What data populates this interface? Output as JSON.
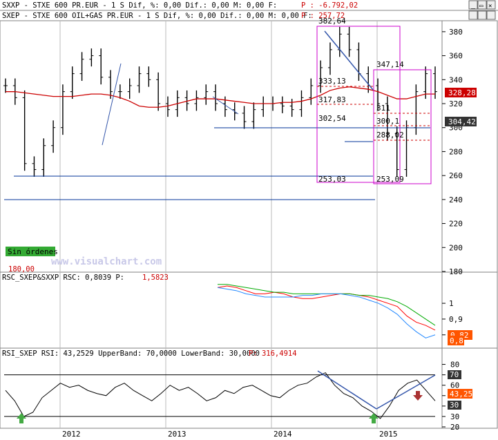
{
  "windows": [
    {
      "name": "SXXP",
      "text": "SXXP - STXE 600 PR.EUR -  1 S Dif, %: 0,00 Dif.: 0,00 M: 0,00 F: ",
      "p_label": "P : -6.792,02"
    },
    {
      "name": "SXEP",
      "text": "SXEP - STXE 600 OIL+GAS PR.EUR -  1 S Dif, %: 0,00 Dif.: 0,00 M: 0,00 F: ",
      "p_label": "P : 257,72"
    }
  ],
  "toolbar": {
    "minimize": "_",
    "restore": "▭",
    "close": "✕"
  },
  "price_panel": {
    "badge_ma": "328,28",
    "badge_price": "304,42",
    "sin_ordenes": "Sin órdenes",
    "watermark": "www.visualchart.com",
    "level_180": "180,00",
    "annotations": [
      {
        "label": "382,64",
        "value": 382.64
      },
      {
        "label": "347,14",
        "value": 347.14
      },
      {
        "label": "333,13",
        "value": 333.13
      },
      {
        "label": "317,83",
        "value": 317.83
      },
      {
        "label": "302,54",
        "value": 302.54
      },
      {
        "label": "311",
        "value": 311
      },
      {
        "label": "300,1",
        "value": 300.1
      },
      {
        "label": "288,02",
        "value": 288.02
      },
      {
        "label": "253,03",
        "value": 253.03
      },
      {
        "label": "253,09",
        "value": 253.09
      }
    ]
  },
  "rsc_panel": {
    "header": "RSC_SXEP&SXXP RSC: 0,8039 P: ",
    "p_label": "1,5823",
    "badge_a": "0,82",
    "badge_b": "0,8"
  },
  "rsi_panel": {
    "header": "RSI_SXEP RSI: 43,2529 UpperBand: 70,0000 LowerBand: 30,0000 ",
    "p_label": "P: 316,4914",
    "badge_70": "70",
    "badge_rsi": "43,25",
    "badge_30": "30"
  },
  "x_axis_labels": [
    "2012",
    "2013",
    "2014",
    "2015"
  ],
  "colors": {
    "price": "#000000",
    "ma": "#cc0000",
    "support": "#003399",
    "magenta": "#cc00cc",
    "green_arrow": "#44aa44",
    "red_arrow": "#aa3333",
    "rsc_red": "#ff0000",
    "rsc_green": "#00aa00",
    "rsc_blue": "#2288ff",
    "badge_red": "#cc0000",
    "badge_orange": "#ff5500",
    "badge_dark": "#333333"
  },
  "chart_data": [
    {
      "type": "candlestick",
      "ylim": [
        180,
        388
      ],
      "yticks": [
        180,
        200,
        220,
        240,
        260,
        280,
        300,
        320,
        340,
        360,
        380
      ],
      "x": [
        "2011-07",
        "2011-08",
        "2011-09",
        "2011-10",
        "2011-11",
        "2011-12",
        "2012-01",
        "2012-02",
        "2012-03",
        "2012-04",
        "2012-05",
        "2012-06",
        "2012-07",
        "2012-08",
        "2012-09",
        "2012-10",
        "2012-11",
        "2012-12",
        "2013-01",
        "2013-02",
        "2013-03",
        "2013-04",
        "2013-05",
        "2013-06",
        "2013-07",
        "2013-08",
        "2013-09",
        "2013-10",
        "2013-11",
        "2013-12",
        "2014-01",
        "2014-02",
        "2014-03",
        "2014-04",
        "2014-05",
        "2014-06",
        "2014-07",
        "2014-08",
        "2014-09",
        "2014-10",
        "2014-11",
        "2014-12",
        "2015-01",
        "2015-02",
        "2015-03",
        "2015-04"
      ],
      "series": [
        {
          "values": [
            335,
            325,
            270,
            265,
            285,
            300,
            330,
            345,
            357,
            360,
            342,
            330,
            330,
            335,
            345,
            340,
            320,
            315,
            325,
            320,
            325,
            330,
            320,
            315,
            312,
            305,
            315,
            320,
            320,
            318,
            315,
            325,
            335,
            350,
            365,
            378,
            365,
            345,
            335,
            320,
            295,
            265,
            300,
            330,
            345,
            330
          ]
        },
        {
          "values": [
            330,
            330,
            329,
            328,
            327,
            326,
            326,
            326,
            327,
            328,
            328,
            327,
            325,
            322,
            318,
            317,
            317,
            318,
            320,
            322,
            324,
            324,
            324,
            323,
            322,
            321,
            320,
            320,
            320,
            321,
            321,
            322,
            324,
            327,
            331,
            333,
            334,
            333,
            332,
            330,
            327,
            324,
            324,
            326,
            328,
            328
          ]
        }
      ]
    },
    {
      "type": "line",
      "ylim": [
        0.72,
        1.18
      ],
      "yticks": [
        0.8,
        0.9,
        1.0
      ],
      "series": [
        {
          "values": [
            1.1,
            1.11,
            1.1,
            1.08,
            1.06,
            1.06,
            1.07,
            1.06,
            1.04,
            1.03,
            1.03,
            1.04,
            1.05,
            1.06,
            1.06,
            1.05,
            1.04,
            1.02,
            1.0,
            0.98,
            0.92,
            0.88,
            0.86,
            0.83
          ]
        },
        {
          "values": [
            1.12,
            1.12,
            1.11,
            1.1,
            1.09,
            1.08,
            1.07,
            1.07,
            1.06,
            1.06,
            1.06,
            1.06,
            1.06,
            1.06,
            1.06,
            1.05,
            1.05,
            1.04,
            1.03,
            1.01,
            0.98,
            0.94,
            0.9,
            0.86
          ]
        },
        {
          "values": [
            1.1,
            1.09,
            1.08,
            1.06,
            1.05,
            1.04,
            1.04,
            1.04,
            1.04,
            1.05,
            1.05,
            1.06,
            1.06,
            1.06,
            1.05,
            1.04,
            1.02,
            1.0,
            0.97,
            0.93,
            0.87,
            0.82,
            0.78,
            0.8
          ]
        }
      ]
    },
    {
      "type": "line",
      "ylim": [
        20,
        85
      ],
      "yticks": [
        20,
        30,
        40,
        50,
        60,
        70,
        80
      ],
      "series": [
        {
          "values": [
            55,
            45,
            30,
            34,
            48,
            55,
            62,
            58,
            60,
            55,
            52,
            50,
            58,
            62,
            55,
            50,
            45,
            52,
            60,
            55,
            58,
            52,
            45,
            48,
            55,
            52,
            58,
            60,
            55,
            50,
            48,
            55,
            60,
            62,
            68,
            72,
            60,
            52,
            48,
            40,
            35,
            28,
            40,
            55,
            62,
            65,
            55,
            45
          ]
        }
      ]
    }
  ]
}
